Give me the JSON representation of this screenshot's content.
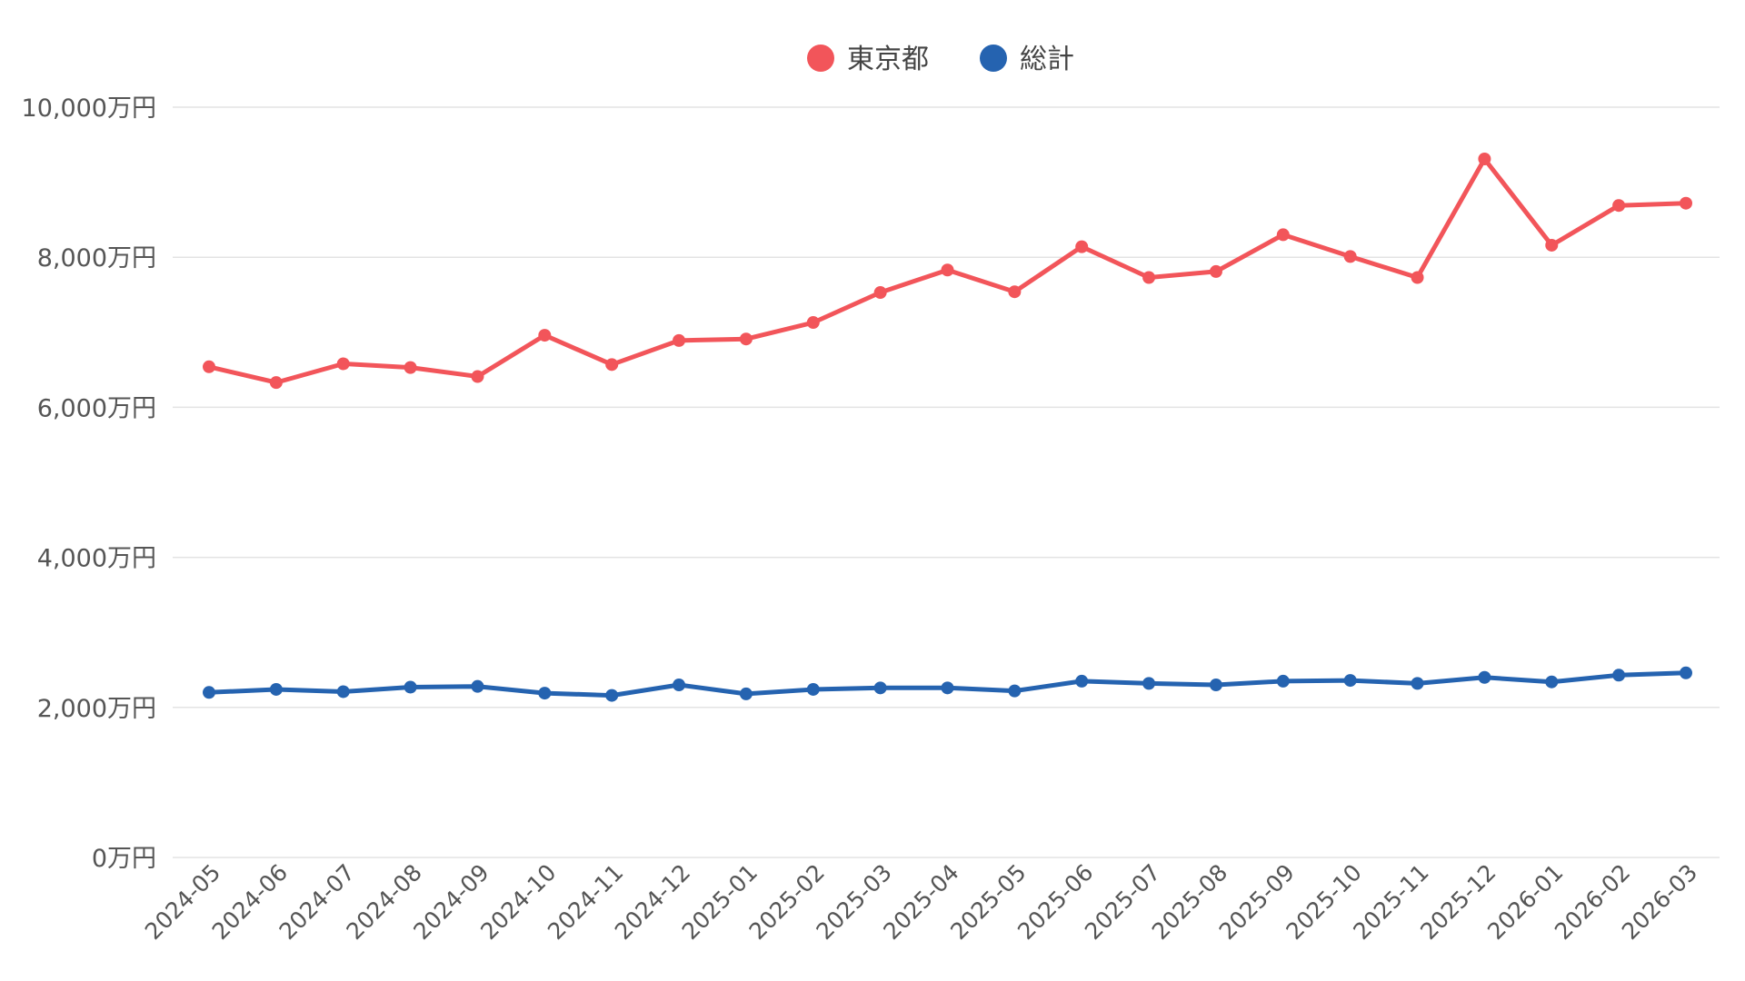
{
  "chart_data": {
    "type": "line",
    "title": "",
    "xlabel": "",
    "ylabel": "",
    "x": [
      "2024-05",
      "2024-06",
      "2024-07",
      "2024-08",
      "2024-09",
      "2024-10",
      "2024-11",
      "2024-12",
      "2025-01",
      "2025-02",
      "2025-03",
      "2025-04",
      "2025-05",
      "2025-06",
      "2025-07",
      "2025-08",
      "2025-09",
      "2025-10",
      "2025-11",
      "2025-12",
      "2026-01",
      "2026-02",
      "2026-03"
    ],
    "ylim": [
      0,
      10000
    ],
    "yticks": [
      0,
      2000,
      4000,
      6000,
      8000,
      10000
    ],
    "ytick_labels": [
      "0万円",
      "2,000万円",
      "4,000万円",
      "6,000万円",
      "8,000万円",
      "10,000万円"
    ],
    "grid": true,
    "legend_position": "top-center",
    "series": [
      {
        "name": "東京都",
        "color": "#f2555a",
        "values": [
          6540,
          6330,
          6580,
          6530,
          6410,
          6960,
          6570,
          6890,
          6910,
          7130,
          7530,
          7830,
          7540,
          8140,
          7730,
          7810,
          8300,
          8010,
          7730,
          9310,
          8160,
          8690,
          8720
        ]
      },
      {
        "name": "総計",
        "color": "#2563b0",
        "values": [
          2200,
          2240,
          2210,
          2270,
          2280,
          2190,
          2160,
          2300,
          2180,
          2240,
          2260,
          2260,
          2220,
          2350,
          2320,
          2300,
          2350,
          2360,
          2320,
          2400,
          2340,
          2430,
          2460
        ]
      }
    ]
  }
}
